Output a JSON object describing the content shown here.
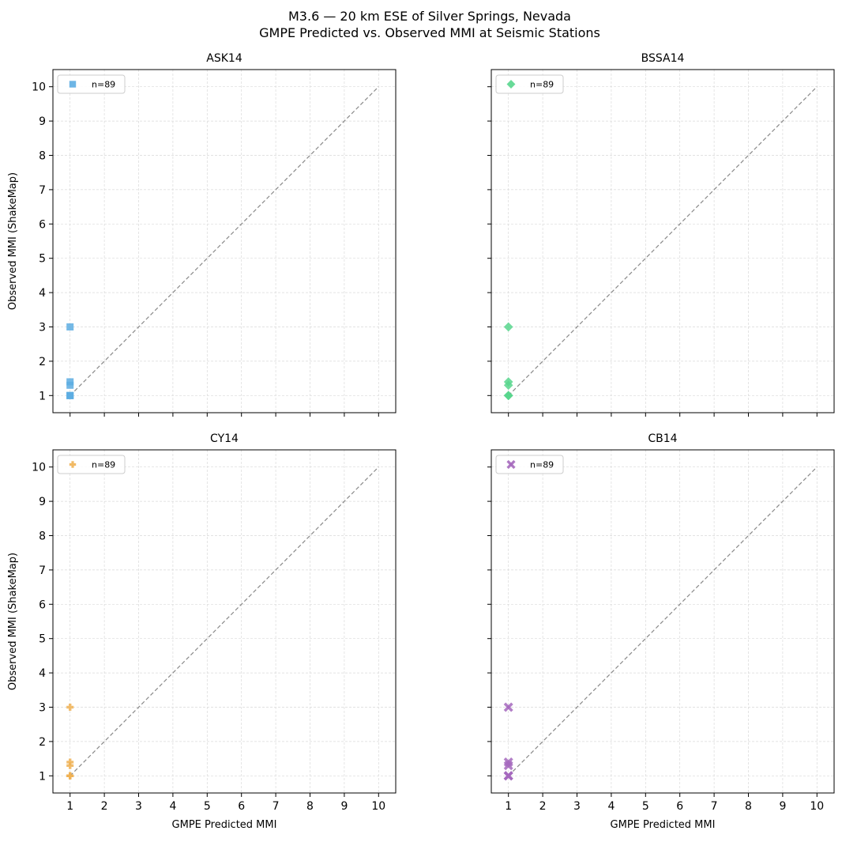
{
  "suptitle_line1": "M3.6 — 20 km ESE of Silver Springs, Nevada",
  "suptitle_line2": "GMPE Predicted vs. Observed MMI at Seismic Stations",
  "chart_data": [
    {
      "type": "scatter",
      "title": "ASK14",
      "xlabel": "",
      "ylabel": "Observed MMI (ShakeMap)",
      "xlim": [
        0.5,
        10.5
      ],
      "ylim": [
        0.5,
        10.5
      ],
      "xticks": [
        1,
        2,
        3,
        4,
        5,
        6,
        7,
        8,
        9,
        10
      ],
      "yticks": [
        1,
        2,
        3,
        4,
        5,
        6,
        7,
        8,
        9,
        10
      ],
      "x_ticklabels_visible": false,
      "y_ticklabels_visible": true,
      "grid": true,
      "reference_line": {
        "x": [
          1,
          10
        ],
        "y": [
          1,
          10
        ],
        "style": "dashed",
        "color": "#888888"
      },
      "legend": {
        "location": "top-left",
        "entries": [
          {
            "label": "n=89",
            "marker": "square",
            "color": "#5dade2"
          }
        ]
      },
      "series": [
        {
          "marker": "square",
          "color": "#5dade2",
          "points": [
            [
              1,
              1
            ],
            [
              1,
              1
            ],
            [
              1,
              1
            ],
            [
              1,
              1.3
            ],
            [
              1,
              1.4
            ],
            [
              1,
              3
            ]
          ]
        }
      ]
    },
    {
      "type": "scatter",
      "title": "BSSA14",
      "xlabel": "",
      "ylabel": "",
      "xlim": [
        0.5,
        10.5
      ],
      "ylim": [
        0.5,
        10.5
      ],
      "xticks": [
        1,
        2,
        3,
        4,
        5,
        6,
        7,
        8,
        9,
        10
      ],
      "yticks": [
        1,
        2,
        3,
        4,
        5,
        6,
        7,
        8,
        9,
        10
      ],
      "x_ticklabels_visible": false,
      "y_ticklabels_visible": false,
      "grid": true,
      "reference_line": {
        "x": [
          1,
          10
        ],
        "y": [
          1,
          10
        ],
        "style": "dashed",
        "color": "#888888"
      },
      "legend": {
        "location": "top-left",
        "entries": [
          {
            "label": "n=89",
            "marker": "diamond",
            "color": "#58d68d"
          }
        ]
      },
      "series": [
        {
          "marker": "diamond",
          "color": "#58d68d",
          "points": [
            [
              1,
              1
            ],
            [
              1,
              1
            ],
            [
              1,
              1
            ],
            [
              1,
              1.3
            ],
            [
              1,
              1.4
            ],
            [
              1,
              3
            ]
          ]
        }
      ]
    },
    {
      "type": "scatter",
      "title": "CY14",
      "xlabel": "GMPE Predicted MMI",
      "ylabel": "Observed MMI (ShakeMap)",
      "xlim": [
        0.5,
        10.5
      ],
      "ylim": [
        0.5,
        10.5
      ],
      "xticks": [
        1,
        2,
        3,
        4,
        5,
        6,
        7,
        8,
        9,
        10
      ],
      "yticks": [
        1,
        2,
        3,
        4,
        5,
        6,
        7,
        8,
        9,
        10
      ],
      "x_ticklabels_visible": true,
      "y_ticklabels_visible": true,
      "grid": true,
      "reference_line": {
        "x": [
          1,
          10
        ],
        "y": [
          1,
          10
        ],
        "style": "dashed",
        "color": "#888888"
      },
      "legend": {
        "location": "top-left",
        "entries": [
          {
            "label": "n=89",
            "marker": "plus",
            "color": "#f0b254"
          }
        ]
      },
      "series": [
        {
          "marker": "plus",
          "color": "#f0b254",
          "points": [
            [
              1,
              1
            ],
            [
              1,
              1
            ],
            [
              1,
              1
            ],
            [
              1,
              1.3
            ],
            [
              1,
              1.4
            ],
            [
              1,
              3
            ]
          ]
        }
      ]
    },
    {
      "type": "scatter",
      "title": "CB14",
      "xlabel": "GMPE Predicted MMI",
      "ylabel": "",
      "xlim": [
        0.5,
        10.5
      ],
      "ylim": [
        0.5,
        10.5
      ],
      "xticks": [
        1,
        2,
        3,
        4,
        5,
        6,
        7,
        8,
        9,
        10
      ],
      "yticks": [
        1,
        2,
        3,
        4,
        5,
        6,
        7,
        8,
        9,
        10
      ],
      "x_ticklabels_visible": true,
      "y_ticklabels_visible": false,
      "grid": true,
      "reference_line": {
        "x": [
          1,
          10
        ],
        "y": [
          1,
          10
        ],
        "style": "dashed",
        "color": "#888888"
      },
      "legend": {
        "location": "top-left",
        "entries": [
          {
            "label": "n=89",
            "marker": "x",
            "color": "#a569bd"
          }
        ]
      },
      "series": [
        {
          "marker": "x",
          "color": "#a569bd",
          "points": [
            [
              1,
              1
            ],
            [
              1,
              1
            ],
            [
              1,
              1
            ],
            [
              1,
              1.3
            ],
            [
              1,
              1.4
            ],
            [
              1,
              3
            ]
          ]
        }
      ]
    }
  ]
}
